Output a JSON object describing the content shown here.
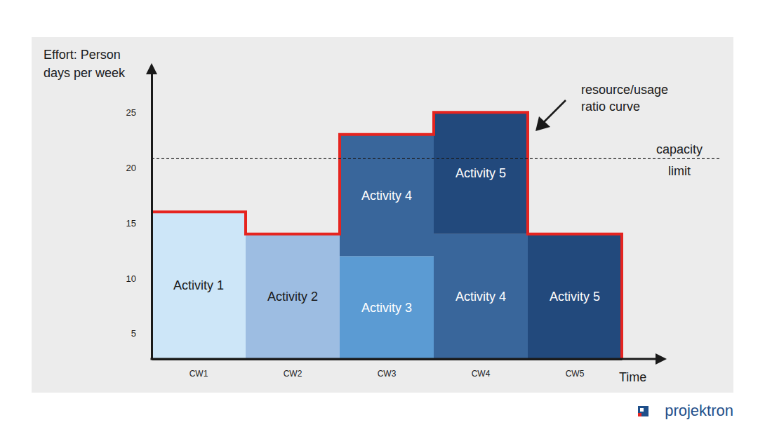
{
  "chart_data": {
    "type": "bar",
    "stacked": true,
    "ylabel": [
      "Effort: Person",
      "days per week"
    ],
    "xlabel": "Time",
    "categories": [
      "CW1",
      "CW2",
      "CW3",
      "CW4",
      "CW5"
    ],
    "series": [
      {
        "name": "Activity 1",
        "color": "#cde6f8",
        "values": [
          16,
          null,
          null,
          null,
          null
        ]
      },
      {
        "name": "Activity 2",
        "color": "#9dbde2",
        "values": [
          null,
          14,
          null,
          null,
          null
        ]
      },
      {
        "name": "Activity 3",
        "color": "#5b9bd3",
        "values": [
          null,
          null,
          12,
          null,
          null
        ]
      },
      {
        "name": "Activity 4",
        "color": "#39669b",
        "values": [
          null,
          null,
          11,
          14,
          null
        ]
      },
      {
        "name": "Activity 5",
        "color": "#22497c",
        "values": [
          null,
          null,
          null,
          11,
          14
        ]
      }
    ],
    "ylim": [
      2.7,
      28.5
    ],
    "yticks": [
      5,
      10,
      15,
      20,
      25
    ],
    "grid": false,
    "reference_lines": [
      {
        "value": 20.8,
        "label": [
          "capacity",
          "limit"
        ],
        "line_style": "dashed"
      }
    ],
    "annotations": [
      {
        "label": [
          "resource/usage",
          "ratio curve"
        ]
      }
    ],
    "curve": {
      "color": "#e52420"
    },
    "source": "projektron"
  }
}
